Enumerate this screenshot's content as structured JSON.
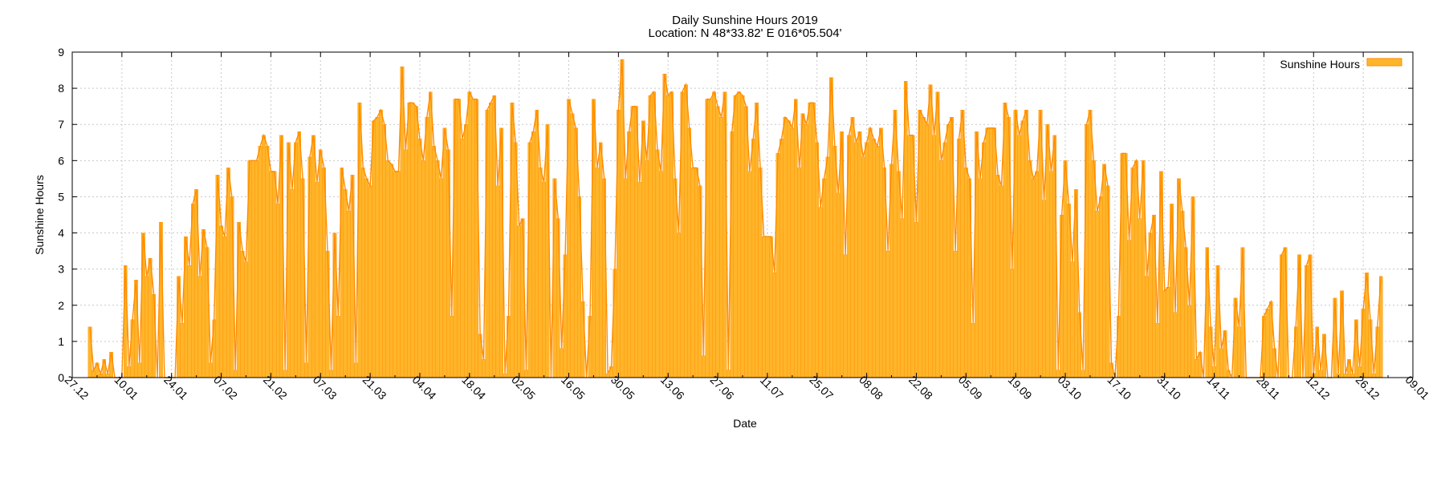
{
  "chart_data": {
    "type": "bar",
    "title_lines": [
      "Daily Sunshine Hours 2019",
      "Location: N 48*33.82'  E 016*05.504'"
    ],
    "xlabel": "Date",
    "ylabel": "Sunshine Hours",
    "ylim": [
      0,
      9
    ],
    "yticks": [
      "0",
      "1",
      "2",
      "3",
      "4",
      "5",
      "6",
      "7",
      "8",
      "9"
    ],
    "xrange": [
      "2018-12-27",
      "2020-01-09"
    ],
    "xtick_dates": [
      "2018-12-27",
      "2019-01-10",
      "2019-01-24",
      "2019-02-07",
      "2019-02-21",
      "2019-03-07",
      "2019-03-21",
      "2019-04-04",
      "2019-04-18",
      "2019-05-02",
      "2019-05-16",
      "2019-05-30",
      "2019-06-13",
      "2019-06-27",
      "2019-07-11",
      "2019-07-25",
      "2019-08-08",
      "2019-08-22",
      "2019-09-05",
      "2019-09-19",
      "2019-10-03",
      "2019-10-17",
      "2019-10-31",
      "2019-11-14",
      "2019-11-28",
      "2019-12-12",
      "2019-12-26",
      "2020-01-09"
    ],
    "xtick_labels": [
      "27.12",
      "10.01",
      "24.01",
      "07.02",
      "21.02",
      "07.03",
      "21.03",
      "04.04",
      "18.04",
      "02.05",
      "16.05",
      "30.05",
      "13.06",
      "27.06",
      "11.07",
      "25.07",
      "08.08",
      "22.08",
      "05.09",
      "19.09",
      "03.10",
      "17.10",
      "31.10",
      "14.11",
      "28.11",
      "12.12",
      "26.12",
      "09.01"
    ],
    "grid": true,
    "legend_position": "top-right",
    "series": [
      {
        "name": "Sunshine Hours",
        "color": "#ffb52a",
        "edge_color": "#ff8c00",
        "start_date": "2019-01-01",
        "values": [
          1.4,
          0.2,
          0.4,
          0.1,
          0.5,
          0.1,
          0.7,
          0,
          0,
          0,
          3.1,
          0.3,
          1.6,
          2.7,
          0.4,
          4.0,
          2.8,
          3.3,
          2.3,
          0,
          4.3,
          0,
          0,
          0,
          0,
          2.8,
          1.5,
          3.9,
          3.1,
          4.8,
          5.2,
          2.8,
          4.1,
          3.6,
          0.4,
          1.6,
          5.6,
          4.2,
          3.9,
          5.8,
          5.0,
          0.2,
          4.3,
          3.5,
          3.2,
          6.0,
          6.0,
          6.0,
          6.4,
          6.7,
          6.4,
          5.7,
          5.7,
          4.8,
          6.7,
          0.2,
          6.5,
          5.2,
          6.5,
          6.8,
          5.5,
          0.4,
          6.1,
          6.7,
          5.4,
          6.3,
          5.8,
          3.5,
          0.2,
          4.0,
          1.7,
          5.8,
          5.2,
          4.6,
          5.6,
          0.4,
          7.6,
          5.8,
          5.5,
          5.3,
          7.1,
          7.2,
          7.4,
          7.0,
          6.0,
          5.9,
          5.7,
          5.7,
          8.6,
          6.3,
          7.6,
          7.6,
          7.5,
          6.6,
          6.0,
          7.2,
          7.9,
          6.4,
          6.0,
          5.5,
          6.9,
          6.3,
          1.7,
          7.7,
          7.7,
          6.6,
          7.0,
          7.9,
          7.7,
          7.7,
          1.2,
          0.5,
          7.4,
          7.6,
          7.8,
          5.3,
          6.9,
          0.1,
          1.7,
          7.6,
          6.5,
          4.2,
          4.4,
          0.2,
          6.5,
          6.8,
          7.4,
          5.8,
          5.4,
          7.0,
          0,
          5.5,
          4.4,
          0.8,
          3.4,
          7.7,
          7.3,
          6.9,
          5.0,
          2.1,
          0,
          1.7,
          7.7,
          5.8,
          6.5,
          5.5,
          0.1,
          0.3,
          3.0,
          7.4,
          8.8,
          5.5,
          6.8,
          7.5,
          7.5,
          5.4,
          7.1,
          6.0,
          7.8,
          7.9,
          6.3,
          5.7,
          8.4,
          7.8,
          7.9,
          5.5,
          4.0,
          7.9,
          8.1,
          6.9,
          5.8,
          5.8,
          5.3,
          0.6,
          7.7,
          7.7,
          7.9,
          7.5,
          7.2,
          7.9,
          0.2,
          6.8,
          7.8,
          7.9,
          7.8,
          7.5,
          5.7,
          6.6,
          7.6,
          5.8,
          3.9,
          3.9,
          3.9,
          2.9,
          6.2,
          6.6,
          7.2,
          7.1,
          6.9,
          7.7,
          5.8,
          7.3,
          7.0,
          7.6,
          7.6,
          6.5,
          4.7,
          5.5,
          6.1,
          8.3,
          6.4,
          5.1,
          6.8,
          3.4,
          6.7,
          7.2,
          6.5,
          6.8,
          6.1,
          6.5,
          6.9,
          6.6,
          6.4,
          6.9,
          5.8,
          3.5,
          5.9,
          7.4,
          5.7,
          4.4,
          8.2,
          6.7,
          6.7,
          4.3,
          7.4,
          7.2,
          7.0,
          8.1,
          6.7,
          7.9,
          6.0,
          6.5,
          7.0,
          7.2,
          3.5,
          6.6,
          7.4,
          5.8,
          5.5,
          1.5,
          6.8,
          5.5,
          6.5,
          6.9,
          6.9,
          6.9,
          5.6,
          5.3,
          7.6,
          7.2,
          3.0,
          7.4,
          6.7,
          7.1,
          7.4,
          6.0,
          5.5,
          5.7,
          7.4,
          4.9,
          7.0,
          5.7,
          6.7,
          0.2,
          4.5,
          6.0,
          4.8,
          3.2,
          5.2,
          1.8,
          0.2,
          7.0,
          7.4,
          6.0,
          4.6,
          5.0,
          5.9,
          5.3,
          0.4,
          0,
          1.7,
          6.2,
          6.2,
          3.8,
          5.8,
          6.0,
          4.4,
          6.0,
          2.8,
          4.0,
          4.5,
          1.5,
          5.7,
          2.4,
          2.5,
          4.8,
          1.8,
          5.5,
          4.6,
          3.6,
          2.0,
          5.0,
          0.5,
          0.7,
          0,
          3.6,
          1.4,
          0.3,
          3.1,
          0.8,
          1.3,
          0.2,
          0,
          2.2,
          1.4,
          3.6,
          0,
          0,
          0,
          0,
          0,
          1.7,
          1.9,
          2.1,
          0.8,
          0,
          3.4,
          3.6,
          0,
          0,
          1.4,
          3.4,
          0,
          3.1,
          3.4,
          0.1,
          1.4,
          0.2,
          1.2,
          0,
          0,
          2.2,
          0.1,
          2.4,
          0.1,
          0.5,
          0.1,
          1.6,
          0.3,
          1.9,
          2.9,
          1.6,
          0.1,
          1.4,
          2.8
        ]
      }
    ]
  }
}
